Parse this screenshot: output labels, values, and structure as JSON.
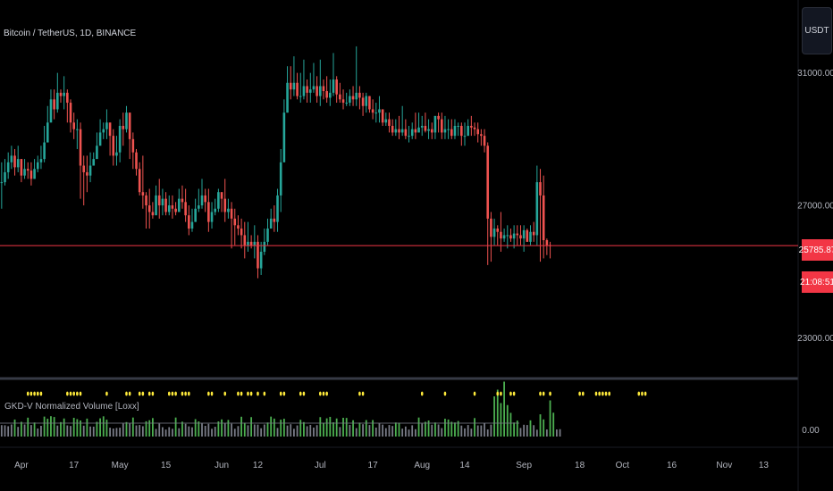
{
  "symbol_title": "Bitcoin / TetherUS, 1D, BINANCE",
  "currency_button": "USDT",
  "indicator_label": "GKD-V Normalized Volume [Loxx]",
  "colors": {
    "up": "#26a69a",
    "down": "#ef5350",
    "price_line": "#f23645",
    "badge": "#f23645",
    "signal": "#ffeb3b",
    "vol_up": "#4caf50",
    "vol_gray": "#787b86"
  },
  "price_badges": {
    "last_price": "25785.87",
    "countdown": "21:08:51"
  },
  "chart_data": [
    {
      "type": "candlestick",
      "title": "Bitcoin / TetherUS, 1D, BINANCE",
      "y_ticks": [
        31000,
        27000,
        23000
      ],
      "y_tick_labels": [
        "31000.00",
        "27000.00",
        "23000.00"
      ],
      "ylim": [
        21800,
        33200
      ],
      "last_price": 25785.87,
      "x_tick_labels": [
        "Apr",
        "17",
        "May",
        "15",
        "Jun",
        "12",
        "Jul",
        "17",
        "Aug",
        "14",
        "Sep",
        "18",
        "Oct",
        "16",
        "Nov",
        "13"
      ],
      "x_start": "2023-03-26",
      "x_end": "2023-11-24",
      "close": [
        27700,
        28000,
        28300,
        28500,
        28150,
        28400,
        27900,
        28100,
        28050,
        27800,
        28100,
        28300,
        28400,
        28900,
        29500,
        30200,
        29900,
        30400,
        30300,
        30400,
        30100,
        29500,
        29300,
        29300,
        28200,
        28000,
        27900,
        28200,
        28400,
        28800,
        29200,
        29300,
        29500,
        29100,
        28500,
        28600,
        29400,
        29300,
        29800,
        29000,
        28600,
        28100,
        27400,
        27300,
        27000,
        26800,
        26700,
        27300,
        27000,
        27200,
        26800,
        27000,
        26900,
        26800,
        27200,
        27100,
        26700,
        26300,
        26500,
        26900,
        27000,
        27300,
        27100,
        26500,
        26800,
        26900,
        27400,
        27200,
        26800,
        26900,
        26600,
        26400,
        26300,
        26100,
        25800,
        25900,
        25800,
        25900,
        25100,
        25600,
        25900,
        26300,
        26600,
        26500,
        27300,
        28300,
        29800,
        30700,
        30500,
        30700,
        30300,
        30300,
        30600,
        30400,
        30500,
        30600,
        30300,
        30600,
        30450,
        30250,
        30400,
        30800,
        30350,
        30200,
        30100,
        30100,
        30300,
        30200,
        30400,
        30250,
        30000,
        30300,
        29900,
        29800,
        29800,
        29900,
        29500,
        29600,
        29400,
        29200,
        29300,
        29200,
        29300,
        29100,
        29100,
        29300,
        29200,
        29350,
        29400,
        29250,
        29300,
        29200,
        29700,
        29600,
        29200,
        29300,
        29300,
        29100,
        29400,
        29400,
        29100,
        29100,
        29400,
        29350,
        29300,
        29150,
        29100,
        28800,
        26600,
        26050,
        26300,
        26200,
        26000,
        26100,
        26100,
        26000,
        26150,
        26100,
        26000,
        26250,
        25900,
        26200,
        26100,
        27700,
        27300,
        25950,
        25800,
        25780
      ],
      "high": [
        28300,
        28400,
        28600,
        28800,
        28700,
        28800,
        28400,
        28400,
        28300,
        28300,
        28400,
        28500,
        28800,
        29400,
        30000,
        30500,
        30500,
        31000,
        30500,
        30900,
        30500,
        30200,
        29800,
        29600,
        29500,
        28500,
        28500,
        28600,
        28600,
        29200,
        29600,
        29500,
        29900,
        29500,
        29300,
        29100,
        29600,
        29800,
        30000,
        29800,
        29200,
        28700,
        28300,
        28500,
        27400,
        27500,
        27100,
        27600,
        27800,
        27500,
        27400,
        27300,
        27300,
        27100,
        27500,
        27600,
        27500,
        27000,
        26900,
        27200,
        27500,
        27800,
        27500,
        27500,
        27100,
        27200,
        27500,
        27400,
        27800,
        27200,
        27100,
        26900,
        26700,
        26600,
        26500,
        26500,
        26100,
        26400,
        26100,
        25900,
        26300,
        26600,
        26900,
        27000,
        27500,
        28700,
        30200,
        31200,
        31200,
        31500,
        31000,
        31000,
        31400,
        30800,
        31000,
        31300,
        30900,
        31400,
        30800,
        30900,
        30800,
        31600,
        30900,
        30700,
        30500,
        30400,
        30500,
        30600,
        31800,
        30600,
        30400,
        30400,
        30300,
        30200,
        30100,
        30300,
        29900,
        29800,
        29800,
        29600,
        29600,
        29700,
        30000,
        29600,
        29400,
        29500,
        29800,
        29800,
        29700,
        29800,
        29600,
        29500,
        29700,
        29800,
        29800,
        29700,
        29600,
        29600,
        29600,
        29500,
        29500,
        29500,
        29600,
        29700,
        29500,
        29500,
        29300,
        29300,
        28900,
        26800,
        26600,
        26400,
        26800,
        26300,
        26400,
        26300,
        26400,
        26400,
        26400,
        26400,
        26300,
        26400,
        26500,
        28200,
        28100,
        27900,
        26000,
        25900
      ],
      "low": [
        26900,
        27600,
        27800,
        28100,
        27900,
        28000,
        27700,
        27800,
        27800,
        27600,
        27800,
        28000,
        28100,
        28300,
        28900,
        29800,
        29600,
        29800,
        30100,
        29900,
        29500,
        29200,
        29000,
        28700,
        27200,
        27000,
        27400,
        27700,
        28200,
        28500,
        28900,
        29000,
        29000,
        28500,
        28200,
        28200,
        28300,
        28800,
        29200,
        28400,
        28100,
        27900,
        27300,
        26900,
        26300,
        26300,
        26600,
        26800,
        26600,
        26700,
        26700,
        26700,
        26600,
        26700,
        26800,
        26900,
        26500,
        26100,
        26200,
        26500,
        26800,
        26900,
        26800,
        26200,
        26300,
        26700,
        26800,
        26800,
        26500,
        26600,
        25700,
        25800,
        26100,
        25700,
        25400,
        25600,
        25700,
        25400,
        24800,
        24900,
        25500,
        25800,
        26400,
        26200,
        26200,
        26800,
        28500,
        29800,
        30200,
        30300,
        30200,
        30100,
        30200,
        30100,
        30100,
        30400,
        30100,
        30000,
        30200,
        30100,
        30000,
        30300,
        30100,
        30100,
        29900,
        30000,
        30000,
        30000,
        30000,
        29900,
        29700,
        29800,
        29800,
        29600,
        29500,
        29500,
        29400,
        29400,
        29200,
        29100,
        29100,
        29000,
        29100,
        29000,
        28900,
        29000,
        29000,
        29200,
        29100,
        29200,
        29000,
        29000,
        29000,
        29200,
        29000,
        29000,
        29000,
        29000,
        29000,
        29100,
        28800,
        28800,
        29100,
        29100,
        29100,
        28900,
        28800,
        28600,
        25200,
        25300,
        25800,
        25800,
        25600,
        25900,
        25700,
        25900,
        25700,
        25800,
        25800,
        25600,
        25900,
        25800,
        25900,
        25800,
        25300,
        25400,
        25500,
        25400
      ]
    },
    {
      "type": "bar",
      "title": "GKD-V Normalized Volume [Loxx]",
      "y_ticks": [
        0
      ],
      "y_tick_labels": [
        "0.00"
      ],
      "ylim": [
        0,
        4.2
      ],
      "threshold": 1.0,
      "values": [
        0.85,
        0.84,
        0.77,
        0.9,
        1.27,
        0.72,
        1.1,
        0.9,
        1.41,
        0.86,
        1.05,
        0.6,
        0.8,
        1.49,
        1.33,
        1.52,
        1.46,
        0.82,
        1.08,
        1.35,
        0.83,
        0.79,
        1.4,
        1.3,
        1.2,
        0.81,
        1.34,
        0.75,
        0.74,
        1.1,
        1.36,
        1.51,
        1.26,
        0.66,
        0.6,
        0.64,
        0.66,
        0.97,
        1.08,
        0.98,
        1.42,
        0.83,
        0.86,
        0.77,
        1.14,
        1.22,
        1.38,
        0.57,
        0.97,
        0.7,
        0.52,
        0.7,
        0.58,
        1.42,
        0.62,
        1.11,
        0.95,
        0.76,
        0.69,
        1.3,
        1.13,
        0.99,
        0.8,
        0.95,
        0.58,
        0.73,
        1.13,
        1.28,
        0.99,
        1.24,
        0.96,
        0.58,
        0.78,
        1.48,
        1.03,
        0.84,
        1.45,
        0.9,
        0.89,
        0.62,
        0.9,
        1.05,
        1.49,
        1.34,
        0.64,
        1.26,
        1.33,
        0.82,
        0.92,
        0.58,
        0.83,
        1.25,
        1.08,
        0.77,
        0.87,
        0.67,
        0.85,
        1.45,
        1.02,
        1.36,
        1.47,
        1.06,
        1.35,
        0.71,
        1.4,
        1.39,
        0.87,
        1.22,
        0.63,
        1.04,
        0.92,
        1.23,
        0.86,
        1.23,
        0.67,
        0.99,
        0.89,
        0.63,
        0.86,
        0.79,
        1.05,
        1.03,
        0.59,
        0.75,
        0.52,
        0.84,
        0.55,
        1.42,
        0.97,
        1.1,
        1.2,
        0.88,
        1.05,
        0.9,
        0.63,
        1.33,
        1.27,
        1.1,
        1.05,
        1.16,
        0.82,
        0.61,
        0.86,
        0.59,
        1.38,
        0.83,
        0.83,
        1.0,
        0.53,
        0.89,
        3.0,
        3.5,
        2.5,
        4.1,
        2.35,
        1.77,
        1.05,
        1.19,
        0.64,
        0.88,
        0.86,
        1.21,
        0.85,
        0.51,
        1.66,
        1.28,
        0.53,
        2.7,
        1.78,
        0.53,
        0.55
      ],
      "signals": [
        8,
        9,
        10,
        11,
        12,
        20,
        21,
        22,
        23,
        24,
        32,
        38,
        39,
        42,
        43,
        45,
        46,
        51,
        52,
        53,
        55,
        56,
        57,
        63,
        64,
        68,
        72,
        73,
        75,
        76,
        78,
        80,
        85,
        86,
        91,
        92,
        97,
        98,
        99,
        109,
        110,
        128,
        135,
        144,
        151,
        152,
        155,
        156,
        164,
        165,
        167,
        176,
        177,
        181,
        182,
        183,
        184,
        185,
        194,
        195,
        196
      ]
    }
  ]
}
